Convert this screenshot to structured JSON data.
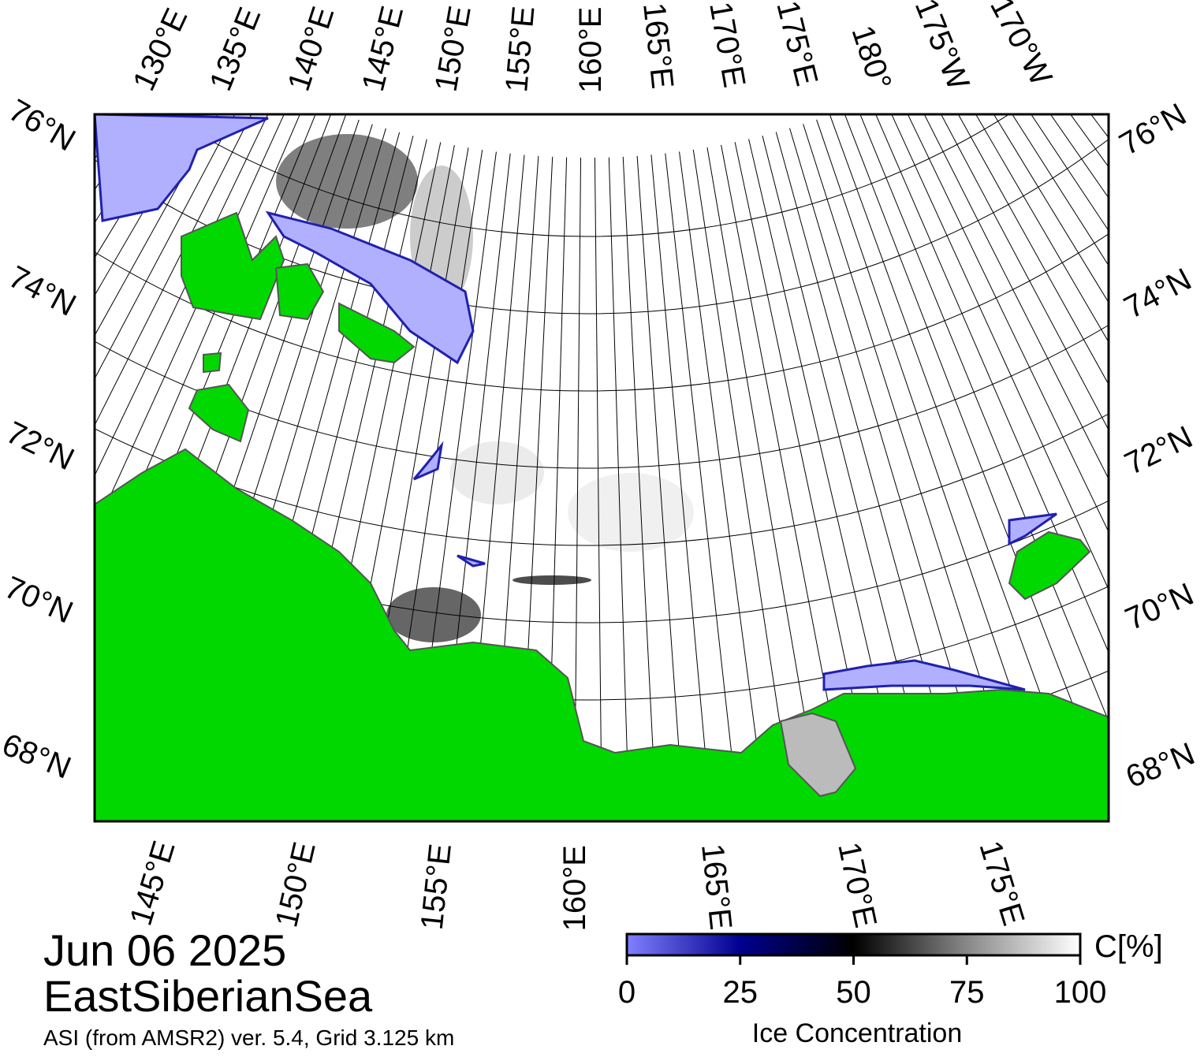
{
  "top_labels": [
    "130°E",
    "135°E",
    "140°E",
    "145°E",
    "150°E",
    "155°E",
    "160°E",
    "165°E",
    "170°E",
    "175°E",
    "180°",
    "175°W",
    "170°W"
  ],
  "left_labels": [
    "76°N",
    "74°N",
    "72°N",
    "70°N",
    "68°N"
  ],
  "right_labels": [
    "76°N",
    "74°N",
    "72°N",
    "70°N",
    "68°N"
  ],
  "bottom_labels": [
    "145°E",
    "150°E",
    "155°E",
    "160°E",
    "165°E",
    "170°E",
    "175°E"
  ],
  "date": "Jun 06 2025",
  "region": "EastSiberianSea",
  "source": "ASI (from AMSR2) ver. 5.4,  Grid 3.125 km",
  "colorbar": {
    "unit": "C[%]",
    "label": "Ice Concentration",
    "lim": [
      0,
      100
    ],
    "ticks": [
      0,
      25,
      50,
      75,
      100
    ]
  }
}
